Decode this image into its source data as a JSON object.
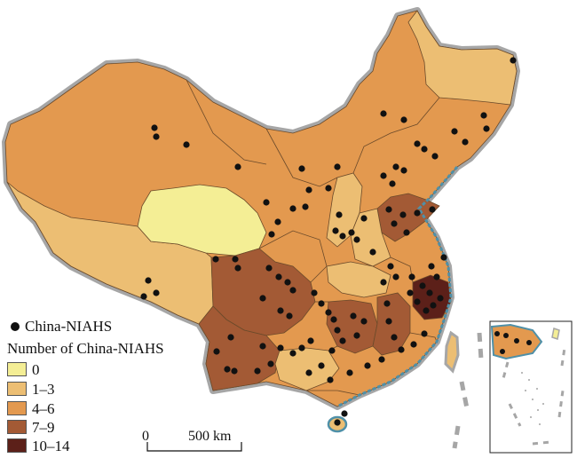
{
  "legend": {
    "point_label": "China-NIAHS",
    "title": "Number of China-NIAHS",
    "classes": [
      {
        "label": "0",
        "color": "#f4ee95"
      },
      {
        "label": "1–3",
        "color": "#ecbe73"
      },
      {
        "label": "4–6",
        "color": "#e3994f"
      },
      {
        "label": "7–9",
        "color": "#a35a35"
      },
      {
        "label": "10–14",
        "color": "#5c2019"
      }
    ]
  },
  "scale_bar": {
    "start": "0",
    "end": "500 km"
  },
  "colors": {
    "border_gray": "#a6a6a6",
    "coast_blue": "#4f90a8",
    "site_marker": "#111111",
    "province_line": "#6b4a2a"
  }
}
